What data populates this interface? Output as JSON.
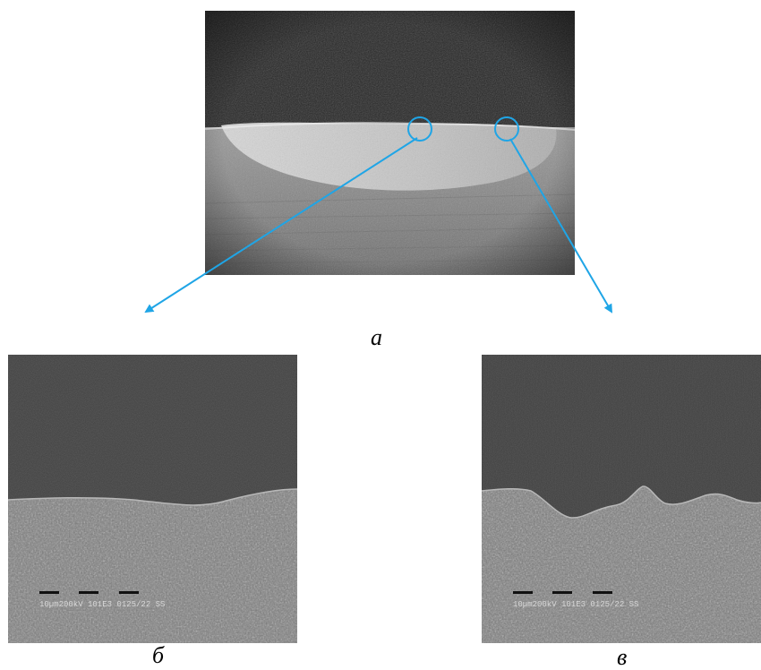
{
  "figure": {
    "captions": {
      "a": "а",
      "b": "б",
      "c": "в"
    },
    "micrographs": {
      "b": {
        "scale_bar_text": "10µm200kV 101E3 0125/22 SS"
      },
      "c": {
        "scale_bar_text": "10µm200kV 101E3 0125/22 SS"
      }
    },
    "colors": {
      "arrow": "#1fa5e6",
      "background": "#ffffff"
    }
  }
}
